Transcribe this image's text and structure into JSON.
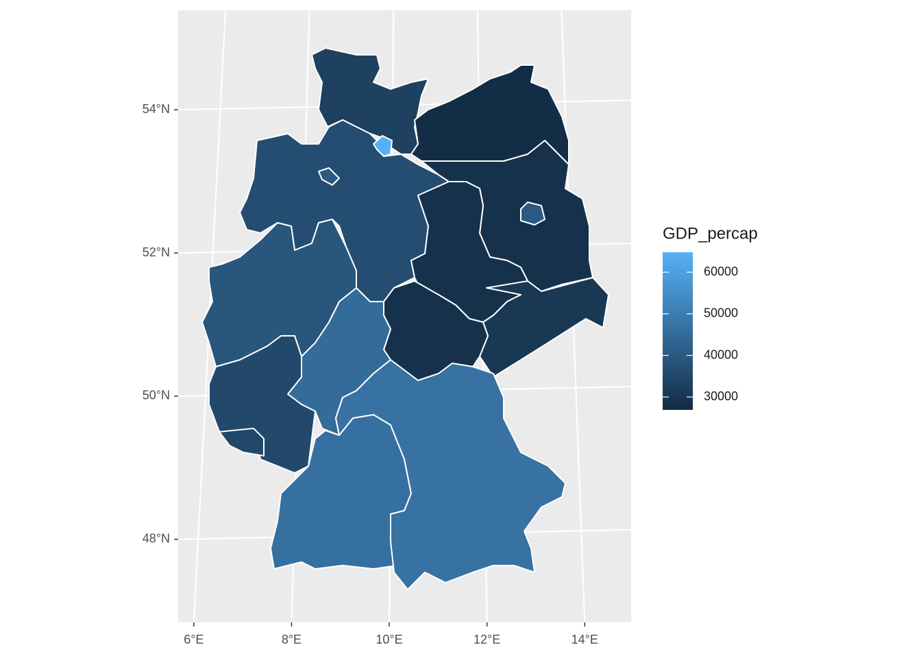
{
  "chart_data": {
    "type": "choropleth",
    "values": [
      33000,
      64500,
      27500,
      36500,
      40000,
      28500,
      40500,
      28500,
      30500,
      28500,
      45000,
      39000,
      35500,
      35000,
      46500,
      47000
    ],
    "xlim": [
      5.68,
      14.95
    ],
    "ylim": [
      46.84,
      55.39
    ],
    "xticks": [
      {
        "value": 6,
        "label": "6°E"
      },
      {
        "value": 8,
        "label": "8°E"
      },
      {
        "value": 10,
        "label": "10°E"
      },
      {
        "value": 12,
        "label": "12°E"
      },
      {
        "value": 14,
        "label": "14°E"
      }
    ],
    "yticks": [
      {
        "value": 48,
        "label": "48°N"
      },
      {
        "value": 50,
        "label": "50°N"
      },
      {
        "value": 52,
        "label": "52°N"
      },
      {
        "value": 54,
        "label": "54°N"
      }
    ],
    "grid": true,
    "legend": {
      "title": "GDP_percap",
      "limits": [
        26900,
        64800
      ],
      "ticks": [
        30000,
        40000,
        50000,
        60000
      ],
      "colors": [
        "#132B43",
        "#56B1F7"
      ]
    }
  }
}
